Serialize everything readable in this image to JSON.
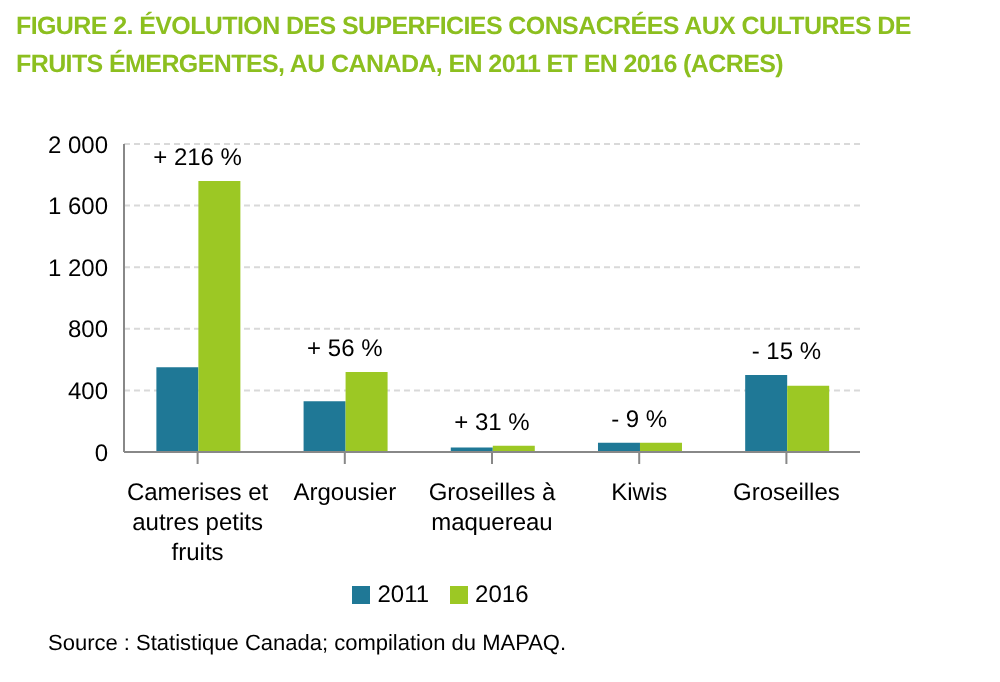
{
  "chart_data": {
    "type": "bar",
    "title": "FIGURE 2. ÉVOLUTION DES SUPERFICIES CONSACRÉES AUX CULTURES DE FRUITS ÉMERGENTES, AU CANADA, EN 2011 ET EN 2016 (ACRES)",
    "categories": [
      "Camerises et autres petits fruits",
      "Argousier",
      "Groseilles à maquereau",
      "Kiwis",
      "Groseilles"
    ],
    "series": [
      {
        "name": "2011",
        "color": "#1f7896",
        "values": [
          550,
          330,
          30,
          60,
          500
        ]
      },
      {
        "name": "2016",
        "color": "#9cc824",
        "values": [
          1760,
          520,
          40,
          60,
          430
        ]
      }
    ],
    "ylim": [
      0,
      2000
    ],
    "yticks": [
      0,
      400,
      800,
      {
        "value": 1200,
        "label": "1 200"
      },
      {
        "value": 1600,
        "label": "1 600"
      },
      {
        "value": 2000,
        "label": "2 000"
      }
    ],
    "grid": "y",
    "legend": "bottom",
    "annotations": [
      {
        "text": "+ 216 %",
        "x": "Camerises et autres petits fruits",
        "y": 1760
      },
      {
        "text": "+ 56 %",
        "x": "Argousier",
        "y": 520
      },
      {
        "text": "+ 31 %",
        "x": "Groseilles à maquereau",
        "y": 40
      },
      {
        "text": "- 9 %",
        "x": "Kiwis",
        "y": 60
      },
      {
        "text": "- 15 %",
        "x": "Groseilles",
        "y": 500
      },
      "Source : Statistique Canada; compilation du MAPAQ."
    ]
  }
}
